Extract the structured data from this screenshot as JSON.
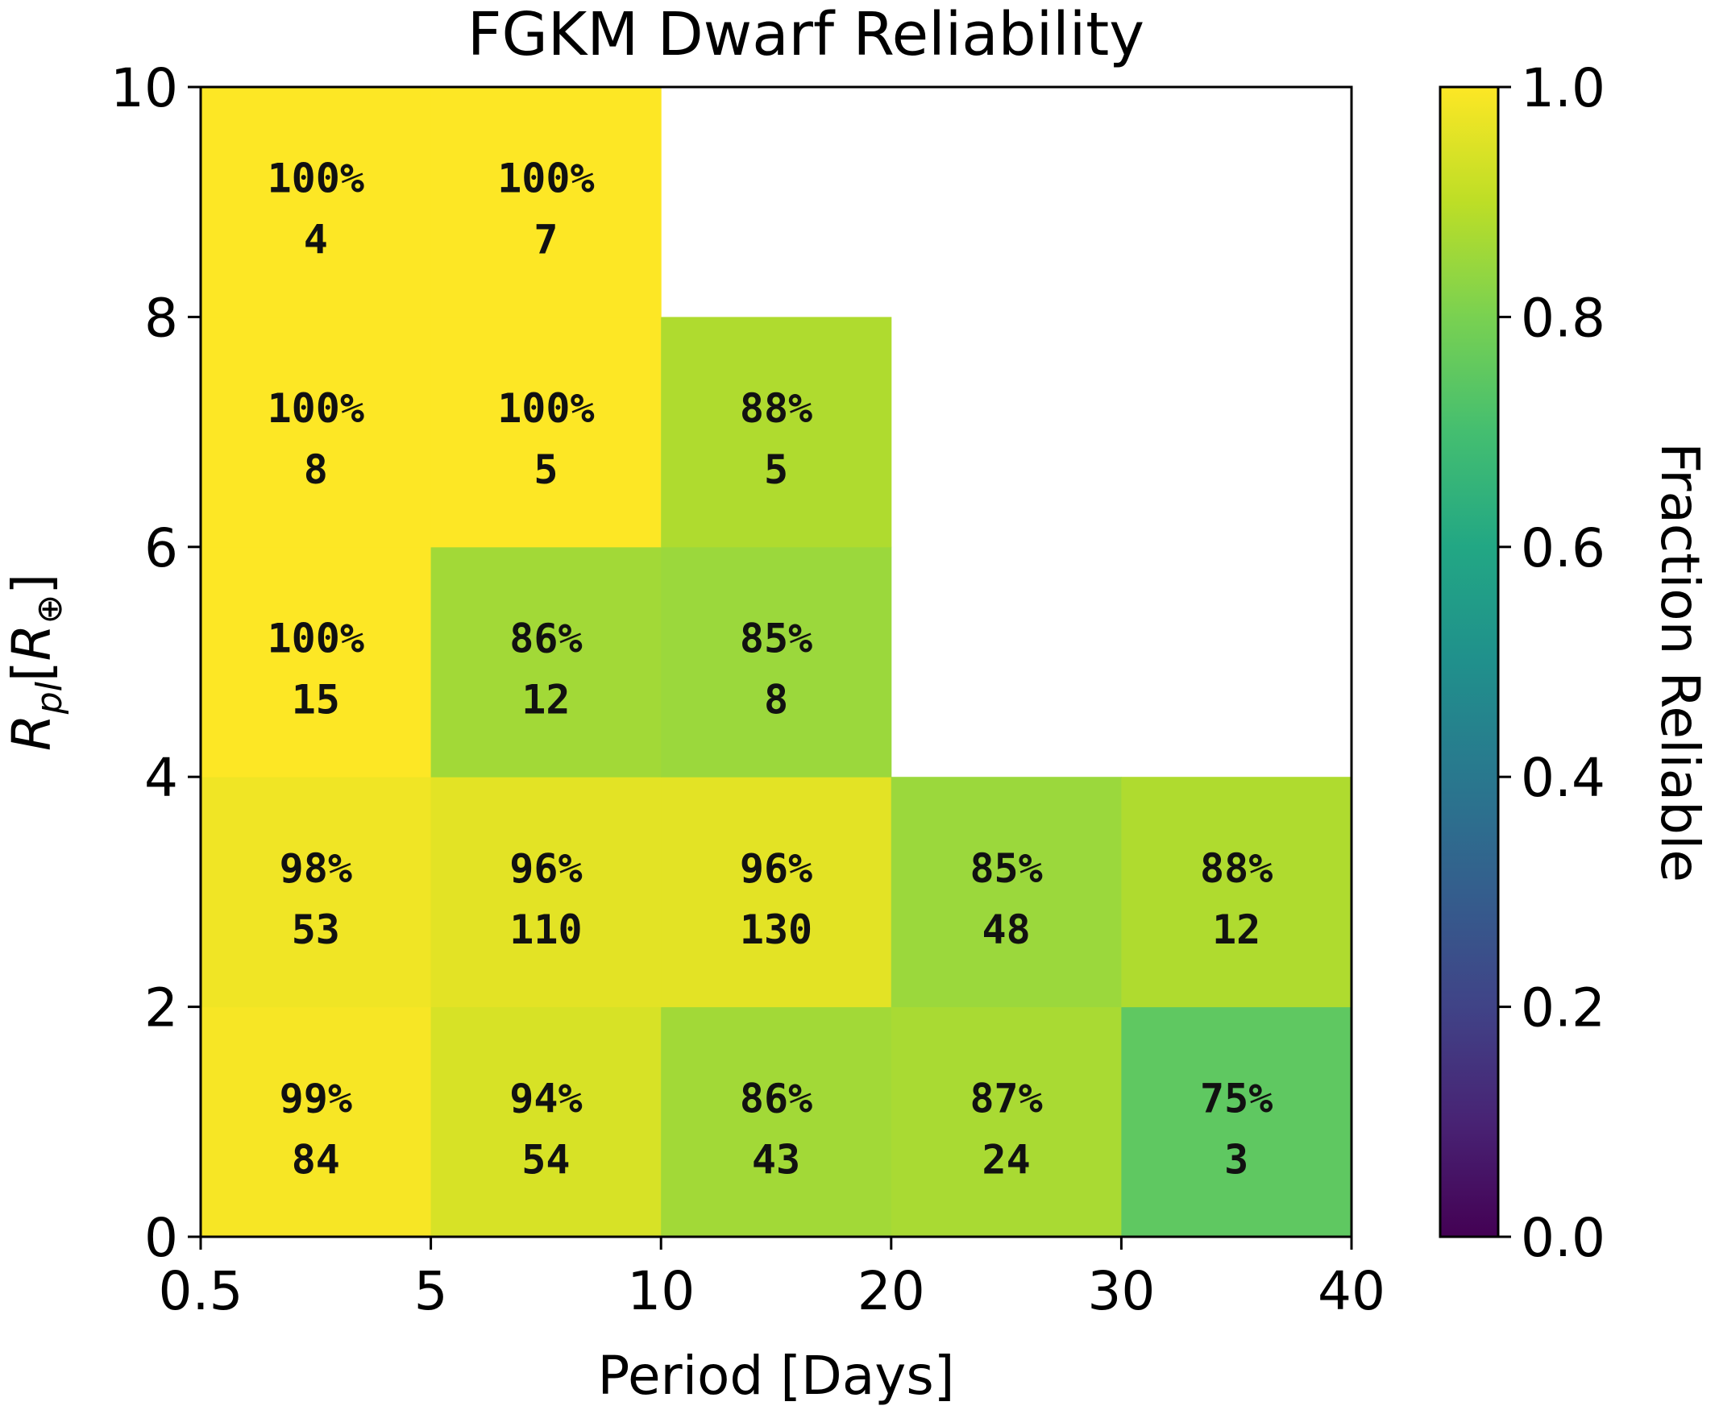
{
  "chart_data": {
    "type": "heatmap",
    "title": "FGKM Dwarf Reliability",
    "xlabel": "Period [Days]",
    "ylabel_main": "R",
    "ylabel_sub": "pl",
    "ylabel_bracket_open": "[",
    "ylabel_inner": "R",
    "ylabel_inner_sub": "⊕",
    "ylabel_bracket_close": "]",
    "x_bin_edges": [
      0.5,
      5,
      10,
      20,
      30,
      40
    ],
    "x_tick_labels": [
      "0.5",
      "5",
      "10",
      "20",
      "30",
      "40"
    ],
    "y_bin_edges": [
      0,
      2,
      4,
      6,
      8,
      10
    ],
    "y_tick_labels": [
      "0",
      "2",
      "4",
      "6",
      "8",
      "10"
    ],
    "ylim": [
      0,
      10
    ],
    "colorbar": {
      "label": "Fraction Reliable",
      "range": [
        0.0,
        1.0
      ],
      "colormap": "viridis",
      "tick_labels": [
        "0.0",
        "0.2",
        "0.4",
        "0.6",
        "0.8",
        "1.0"
      ]
    },
    "cells": [
      {
        "x_bin": 0,
        "y_bin": 0,
        "fraction": 0.99,
        "percent_label": "99%",
        "count": "84"
      },
      {
        "x_bin": 1,
        "y_bin": 0,
        "fraction": 0.94,
        "percent_label": "94%",
        "count": "54"
      },
      {
        "x_bin": 2,
        "y_bin": 0,
        "fraction": 0.86,
        "percent_label": "86%",
        "count": "43"
      },
      {
        "x_bin": 3,
        "y_bin": 0,
        "fraction": 0.87,
        "percent_label": "87%",
        "count": "24"
      },
      {
        "x_bin": 4,
        "y_bin": 0,
        "fraction": 0.75,
        "percent_label": "75%",
        "count": "3"
      },
      {
        "x_bin": 0,
        "y_bin": 1,
        "fraction": 0.98,
        "percent_label": "98%",
        "count": "53"
      },
      {
        "x_bin": 1,
        "y_bin": 1,
        "fraction": 0.96,
        "percent_label": "96%",
        "count": "110"
      },
      {
        "x_bin": 2,
        "y_bin": 1,
        "fraction": 0.96,
        "percent_label": "96%",
        "count": "130"
      },
      {
        "x_bin": 3,
        "y_bin": 1,
        "fraction": 0.85,
        "percent_label": "85%",
        "count": "48"
      },
      {
        "x_bin": 4,
        "y_bin": 1,
        "fraction": 0.88,
        "percent_label": "88%",
        "count": "12"
      },
      {
        "x_bin": 0,
        "y_bin": 2,
        "fraction": 1.0,
        "percent_label": "100%",
        "count": "15"
      },
      {
        "x_bin": 1,
        "y_bin": 2,
        "fraction": 0.86,
        "percent_label": "86%",
        "count": "12"
      },
      {
        "x_bin": 2,
        "y_bin": 2,
        "fraction": 0.85,
        "percent_label": "85%",
        "count": "8"
      },
      {
        "x_bin": 0,
        "y_bin": 3,
        "fraction": 1.0,
        "percent_label": "100%",
        "count": "8"
      },
      {
        "x_bin": 1,
        "y_bin": 3,
        "fraction": 1.0,
        "percent_label": "100%",
        "count": "5"
      },
      {
        "x_bin": 2,
        "y_bin": 3,
        "fraction": 0.88,
        "percent_label": "88%",
        "count": "5"
      },
      {
        "x_bin": 0,
        "y_bin": 4,
        "fraction": 1.0,
        "percent_label": "100%",
        "count": "4"
      },
      {
        "x_bin": 1,
        "y_bin": 4,
        "fraction": 1.0,
        "percent_label": "100%",
        "count": "7"
      }
    ]
  }
}
